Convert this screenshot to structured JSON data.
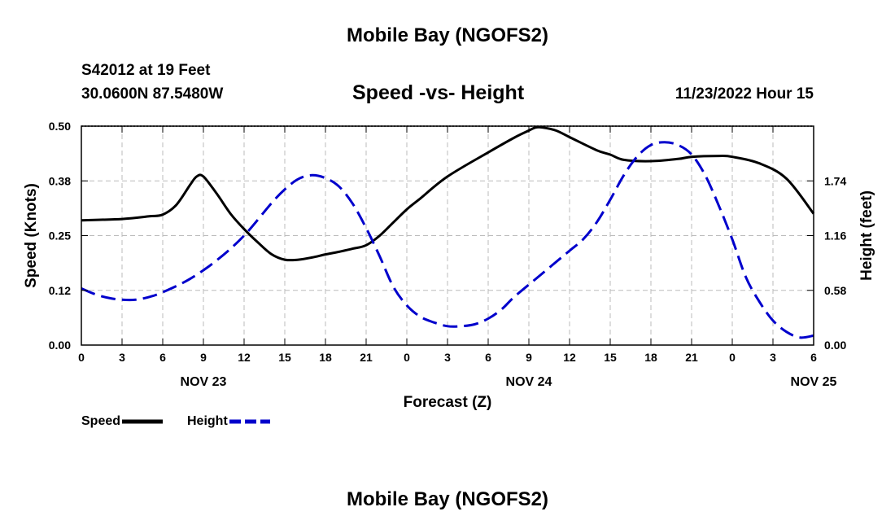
{
  "header": {
    "main_title": "Mobile Bay (NGOFS2)",
    "station": "S42012 at 19 Feet",
    "coords": "30.0600N  87.5480W",
    "subtitle": "Speed -vs- Height",
    "datetime": "11/23/2022 Hour 15",
    "bottom_title": "Mobile Bay (NGOFS2)"
  },
  "legend": {
    "speed_label": "Speed",
    "height_label": "Height"
  },
  "colors": {
    "speed": "#000000",
    "height": "#0000cc",
    "grid": "#bbbbbb"
  },
  "chart_data": {
    "type": "line",
    "xlabel": "Forecast (Z)",
    "ylabel": "Speed (Knots)",
    "y2label": "Height (feet)",
    "x_ticks": [
      "0",
      "3",
      "6",
      "9",
      "12",
      "15",
      "18",
      "21",
      "0",
      "3",
      "6",
      "9",
      "12",
      "15",
      "18",
      "21",
      "0",
      "3",
      "6"
    ],
    "day_labels": [
      {
        "label": "NOV 23",
        "hour": 9
      },
      {
        "label": "NOV 24",
        "hour": 33
      },
      {
        "label": "NOV 25",
        "hour": 54
      }
    ],
    "xlim": [
      0,
      54
    ],
    "ylim": [
      0,
      0.5
    ],
    "y_ticks": [
      "0.00",
      "0.12",
      "0.25",
      "0.38",
      "0.50"
    ],
    "y_tick_values": [
      0,
      0.125,
      0.25,
      0.375,
      0.5
    ],
    "y2lim": [
      0,
      2.32
    ],
    "y2_ticks": [
      "0.00",
      "0.58",
      "1.16",
      "1.74"
    ],
    "y2_tick_values": [
      0,
      0.58,
      1.16,
      1.74
    ],
    "series": [
      {
        "name": "Speed",
        "axis": "left",
        "style": "solid",
        "x": [
          0,
          3,
          5,
          6,
          7,
          8,
          8.5,
          9,
          10,
          11,
          12,
          13,
          14,
          15,
          16,
          17,
          18,
          19,
          20,
          21,
          22,
          23,
          24,
          25,
          27,
          30,
          32,
          33,
          33.5,
          34,
          35,
          36,
          38,
          39,
          40,
          42,
          44,
          45,
          47,
          48,
          50,
          52,
          54
        ],
        "values": [
          0.285,
          0.288,
          0.294,
          0.298,
          0.32,
          0.365,
          0.385,
          0.385,
          0.345,
          0.3,
          0.265,
          0.235,
          0.208,
          0.195,
          0.195,
          0.2,
          0.207,
          0.213,
          0.22,
          0.228,
          0.25,
          0.28,
          0.31,
          0.335,
          0.385,
          0.44,
          0.475,
          0.49,
          0.497,
          0.497,
          0.49,
          0.475,
          0.445,
          0.435,
          0.423,
          0.42,
          0.425,
          0.43,
          0.432,
          0.43,
          0.415,
          0.38,
          0.3
        ]
      },
      {
        "name": "Height",
        "axis": "right",
        "style": "dashed",
        "x": [
          0,
          1,
          2,
          3,
          4,
          5,
          6,
          8,
          10,
          12,
          14,
          15,
          16,
          17,
          18,
          19,
          20,
          21,
          22,
          23,
          24,
          25,
          26,
          27,
          28,
          29,
          30,
          31,
          32,
          34,
          36,
          37,
          38,
          39,
          40,
          41,
          42,
          43,
          44,
          45,
          46,
          47,
          48,
          49,
          50,
          51,
          52,
          53,
          54
        ],
        "values": [
          0.6,
          0.54,
          0.5,
          0.48,
          0.48,
          0.51,
          0.56,
          0.7,
          0.9,
          1.16,
          1.5,
          1.65,
          1.76,
          1.8,
          1.77,
          1.68,
          1.5,
          1.24,
          0.94,
          0.62,
          0.42,
          0.3,
          0.24,
          0.2,
          0.2,
          0.22,
          0.28,
          0.38,
          0.52,
          0.76,
          1.0,
          1.12,
          1.3,
          1.54,
          1.8,
          2.0,
          2.12,
          2.15,
          2.12,
          2.02,
          1.8,
          1.48,
          1.12,
          0.72,
          0.46,
          0.26,
          0.14,
          0.08,
          0.1
        ]
      }
    ]
  }
}
